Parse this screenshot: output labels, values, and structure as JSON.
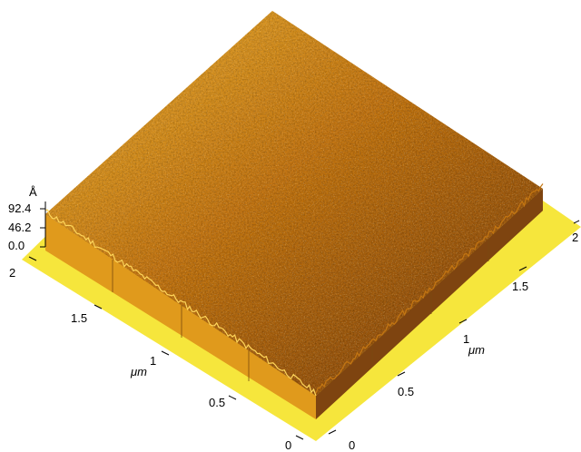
{
  "figure": {
    "z_axis": {
      "unit": "Å",
      "ticks": [
        "92.4",
        "46.2",
        "0.0"
      ]
    },
    "left_axis": {
      "unit": "μm",
      "unit_prefix": "",
      "tick_labels": [
        "2",
        "1.5",
        "1",
        "0.5",
        "0"
      ]
    },
    "right_axis": {
      "unit": "μm",
      "tick_labels": [
        "0",
        "0.5",
        "1",
        "1.5",
        "2"
      ]
    },
    "colors": {
      "base_plane": "#f6e63c",
      "surface_dark": "#7a3e06",
      "surface_mid": "#c47612",
      "surface_light": "#f0b634",
      "surface_highlight": "#ffd65a",
      "side_wall_left": "#e09a1c",
      "side_wall_right": "#7e4410"
    }
  }
}
